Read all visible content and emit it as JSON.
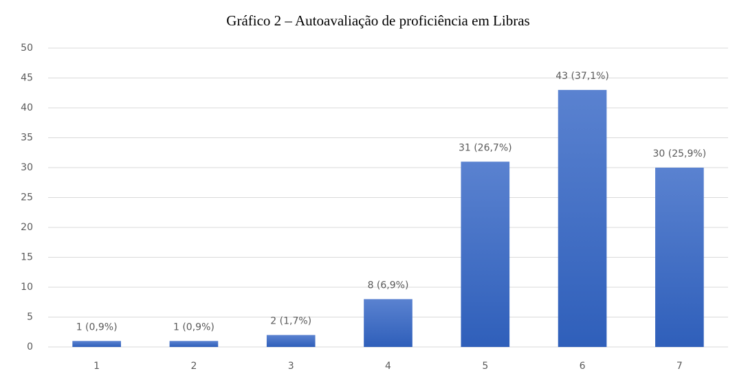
{
  "chart_data": {
    "type": "bar",
    "title": "Gráfico 2 – Autoavaliação de proficiência em Libras",
    "categories": [
      "1",
      "2",
      "3",
      "4",
      "5",
      "6",
      "7"
    ],
    "values": [
      1,
      1,
      2,
      8,
      31,
      43,
      30
    ],
    "value_labels": [
      "1 (0,9%)",
      "1 (0,9%)",
      "2 (1,7%)",
      "8 (6,9%)",
      "31 (26,7%)",
      "43 (37,1%)",
      "30 (25,9%)"
    ],
    "color": "#4070c8",
    "ylim": [
      0,
      50
    ],
    "yticks": [
      0,
      5,
      10,
      15,
      20,
      25,
      30,
      35,
      40,
      45,
      50
    ],
    "grid": true
  }
}
